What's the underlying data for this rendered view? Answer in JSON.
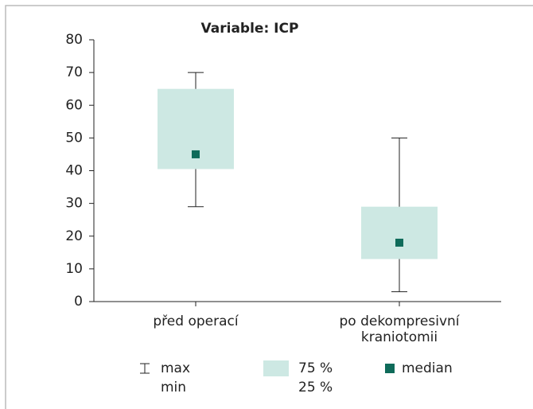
{
  "chart_data": {
    "type": "box",
    "title": "Variable: ICP",
    "categories": [
      "před operací",
      "po dekompresivní kraniotomii"
    ],
    "boxes": [
      {
        "min": 29,
        "q1": 40.5,
        "median": 45,
        "q3": 65,
        "max": 70
      },
      {
        "min": 3,
        "q1": 13,
        "median": 18,
        "q3": 29,
        "max": 50
      }
    ],
    "box_color": "#cde8e3",
    "median_color": "#0f6b5a",
    "ylim": [
      0,
      80
    ],
    "yticks": [
      0,
      10,
      20,
      30,
      40,
      50,
      60,
      70,
      80
    ],
    "legend": {
      "whisker": [
        "max",
        "min"
      ],
      "box": [
        "75 %",
        "25 %"
      ],
      "median": "median"
    }
  }
}
